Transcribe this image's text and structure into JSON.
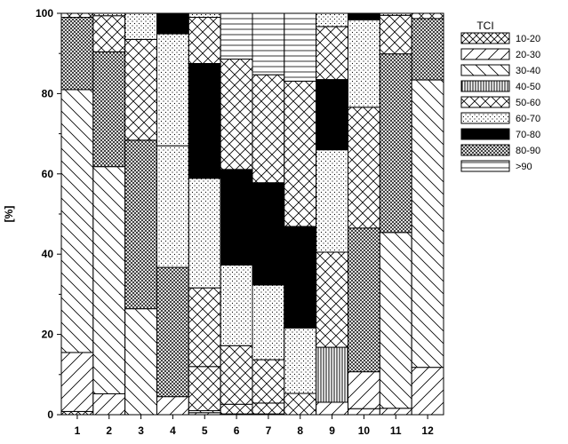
{
  "chart_data": {
    "type": "bar",
    "stacked": true,
    "categories": [
      "1",
      "2",
      "3",
      "4",
      "5",
      "6",
      "7",
      "8",
      "9",
      "10",
      "11",
      "12"
    ],
    "xlabel": "",
    "ylabel": "[%]",
    "ylim": [
      0,
      100
    ],
    "yticks": [
      0,
      20,
      40,
      60,
      80,
      100
    ],
    "grid": false,
    "legend": {
      "title": "TCI",
      "placement": "right"
    },
    "series": [
      {
        "name": "10-20",
        "pattern": "crosshatch",
        "values": [
          0.8,
          0,
          0,
          0,
          0,
          0,
          0,
          0,
          0,
          0,
          0,
          0
        ]
      },
      {
        "name": "20-30",
        "pattern": "forward-diagonal",
        "values": [
          14.7,
          5.2,
          0,
          4.5,
          0.5,
          0.2,
          0.2,
          0,
          3.1,
          10.7,
          1.6,
          11.8
        ]
      },
      {
        "name": "30-40",
        "pattern": "back-diagonal",
        "values": [
          65.5,
          56.6,
          26.4,
          0,
          0.5,
          0,
          0,
          0,
          0,
          0,
          43.8,
          71.5
        ]
      },
      {
        "name": "40-50",
        "pattern": "vertical",
        "values": [
          0,
          0,
          0,
          0,
          0,
          0,
          0,
          0,
          13.7,
          0,
          0,
          0
        ]
      },
      {
        "name": "50-60",
        "pattern": "small-crosshatch",
        "values": [
          0,
          0,
          0,
          0,
          11,
          2.4,
          2.7,
          5.3,
          0,
          0,
          0,
          0
        ]
      },
      {
        "name": "60-70",
        "pattern": "dots",
        "values": [
          0,
          0,
          0,
          0,
          0,
          0,
          0,
          0,
          0,
          0,
          0,
          0
        ]
      },
      {
        "name": "80-90",
        "pattern": "dense-crosshatch",
        "values": [
          18,
          28.6,
          42,
          32,
          0,
          0,
          0,
          0,
          0,
          35.8,
          44.5,
          15.3
        ]
      },
      {
        "name": "50-60",
        "pattern": "small-crosshatch",
        "values": [
          0,
          0,
          0,
          0,
          19.6,
          14.6,
          10.8,
          16.3,
          23.7,
          30,
          0,
          0
        ]
      },
      {
        "name": "60-70",
        "pattern": "dots",
        "values": [
          0,
          0,
          24.7,
          30.3,
          27.3,
          20.1,
          18.6,
          0,
          25.5,
          0,
          0,
          0
        ]
      },
      {
        "name": "70-80",
        "pattern": "solid",
        "values": [
          0,
          0,
          0,
          0,
          28.6,
          23.8,
          25.5,
          25.3,
          17.5,
          0,
          0,
          0
        ]
      },
      {
        "name": "50-60",
        "pattern": "small-crosshatch",
        "values": [
          0,
          0,
          0,
          0,
          0,
          27.5,
          27,
          36.4,
          0,
          0,
          0,
          0
        ]
      },
      {
        "name": "60-70",
        "pattern": "dots",
        "values": [
          0,
          0,
          0,
          0,
          0,
          0,
          0,
          0,
          0,
          21.8,
          0,
          0
        ]
      },
      {
        "name": ">90",
        "pattern": "horizontal",
        "values": [
          0,
          0,
          0,
          0,
          0,
          11.6,
          15.3,
          16.9,
          0,
          0,
          0,
          0
        ]
      }
    ],
    "stacks": [
      [
        {
          "label": "10-20",
          "pattern": "crosshatch",
          "from": 0,
          "to": 0.8
        },
        {
          "label": "20-30",
          "pattern": "forward-diagonal",
          "from": 0.8,
          "to": 15.5
        },
        {
          "label": "30-40",
          "pattern": "back-diagonal",
          "from": 15.5,
          "to": 81
        },
        {
          "label": "80-90",
          "pattern": "dense-crosshatch",
          "from": 81,
          "to": 99
        },
        {
          "label": "50-60",
          "pattern": "small-crosshatch",
          "from": 99,
          "to": 100
        }
      ],
      [
        {
          "label": "20-30",
          "pattern": "forward-diagonal",
          "from": 0,
          "to": 5.2
        },
        {
          "label": "30-40",
          "pattern": "back-diagonal",
          "from": 5.2,
          "to": 61.8
        },
        {
          "label": "80-90",
          "pattern": "dense-crosshatch",
          "from": 61.8,
          "to": 90.4
        },
        {
          "label": "50-60",
          "pattern": "small-crosshatch",
          "from": 90.4,
          "to": 99.4
        },
        {
          "label": "60-70",
          "pattern": "dots",
          "from": 99.4,
          "to": 100
        }
      ],
      [
        {
          "label": "30-40",
          "pattern": "back-diagonal",
          "from": 0,
          "to": 26.4
        },
        {
          "label": "80-90",
          "pattern": "dense-crosshatch",
          "from": 26.4,
          "to": 68.4
        },
        {
          "label": "50-60",
          "pattern": "small-crosshatch",
          "from": 68.4,
          "to": 93.5
        },
        {
          "label": "60-70",
          "pattern": "dots",
          "from": 93.5,
          "to": 100
        }
      ],
      [
        {
          "label": "20-30",
          "pattern": "forward-diagonal",
          "from": 0,
          "to": 4.5
        },
        {
          "label": "80-90",
          "pattern": "dense-crosshatch",
          "from": 4.5,
          "to": 36.7
        },
        {
          "label": "60-70",
          "pattern": "dots",
          "from": 36.7,
          "to": 67
        },
        {
          "label": "60-70",
          "pattern": "dots",
          "from": 67,
          "to": 94.9
        },
        {
          "label": "70-80",
          "pattern": "solid",
          "from": 94.9,
          "to": 100
        }
      ],
      [
        {
          "label": "20-30",
          "pattern": "forward-diagonal",
          "from": 0,
          "to": 0.5
        },
        {
          "label": "30-40",
          "pattern": "back-diagonal",
          "from": 0.5,
          "to": 1
        },
        {
          "label": "50-60",
          "pattern": "small-crosshatch",
          "from": 1,
          "to": 12
        },
        {
          "label": "50-60",
          "pattern": "small-crosshatch",
          "from": 12,
          "to": 31.6
        },
        {
          "label": "60-70",
          "pattern": "dots",
          "from": 31.6,
          "to": 58.9
        },
        {
          "label": "70-80",
          "pattern": "solid",
          "from": 58.9,
          "to": 87.5
        },
        {
          "label": "50-60",
          "pattern": "small-crosshatch",
          "from": 87.5,
          "to": 99
        },
        {
          "label": "60-70",
          "pattern": "dots",
          "from": 99,
          "to": 100
        }
      ],
      [
        {
          "label": "20-30",
          "pattern": "forward-diagonal",
          "from": 0,
          "to": 0.2
        },
        {
          "label": "50-60",
          "pattern": "small-crosshatch",
          "from": 0.2,
          "to": 2.6
        },
        {
          "label": "50-60",
          "pattern": "small-crosshatch",
          "from": 2.6,
          "to": 17.2
        },
        {
          "label": "60-70",
          "pattern": "dots",
          "from": 17.2,
          "to": 37.3
        },
        {
          "label": "70-80",
          "pattern": "solid",
          "from": 37.3,
          "to": 61.1
        },
        {
          "label": "50-60",
          "pattern": "small-crosshatch",
          "from": 61.1,
          "to": 88.6
        },
        {
          "label": ">90",
          "pattern": "horizontal",
          "from": 88.6,
          "to": 100
        }
      ],
      [
        {
          "label": "20-30",
          "pattern": "forward-diagonal",
          "from": 0,
          "to": 0.2
        },
        {
          "label": "50-60",
          "pattern": "small-crosshatch",
          "from": 0.2,
          "to": 2.9
        },
        {
          "label": "50-60",
          "pattern": "small-crosshatch",
          "from": 2.9,
          "to": 13.7
        },
        {
          "label": "60-70",
          "pattern": "dots",
          "from": 13.7,
          "to": 32.3
        },
        {
          "label": "70-80",
          "pattern": "solid",
          "from": 32.3,
          "to": 57.8
        },
        {
          "label": "50-60",
          "pattern": "small-crosshatch",
          "from": 57.8,
          "to": 84.7
        },
        {
          "label": ">90",
          "pattern": "horizontal",
          "from": 84.7,
          "to": 100
        }
      ],
      [
        {
          "label": "50-60",
          "pattern": "small-crosshatch",
          "from": 0,
          "to": 5.3
        },
        {
          "label": "60-70",
          "pattern": "dots",
          "from": 5.3,
          "to": 21.6
        },
        {
          "label": "70-80",
          "pattern": "solid",
          "from": 21.6,
          "to": 46.9
        },
        {
          "label": "50-60",
          "pattern": "small-crosshatch",
          "from": 46.9,
          "to": 83.1
        },
        {
          "label": ">90",
          "pattern": "horizontal",
          "from": 83.1,
          "to": 100
        }
      ],
      [
        {
          "label": "20-30",
          "pattern": "forward-diagonal",
          "from": 0,
          "to": 3.1
        },
        {
          "label": "40-50",
          "pattern": "vertical",
          "from": 3.1,
          "to": 16.8
        },
        {
          "label": "50-60",
          "pattern": "small-crosshatch",
          "from": 16.8,
          "to": 40.5
        },
        {
          "label": "60-70",
          "pattern": "dots",
          "from": 40.5,
          "to": 66
        },
        {
          "label": "70-80",
          "pattern": "solid",
          "from": 66,
          "to": 83.5
        },
        {
          "label": "50-60",
          "pattern": "small-crosshatch",
          "from": 83.5,
          "to": 96.7
        },
        {
          "label": "60-70",
          "pattern": "dots",
          "from": 96.7,
          "to": 100
        }
      ],
      [
        {
          "label": "20-30",
          "pattern": "forward-diagonal",
          "from": 0,
          "to": 1.5
        },
        {
          "label": "20-30",
          "pattern": "forward-diagonal",
          "from": 1.5,
          "to": 10.7
        },
        {
          "label": "80-90",
          "pattern": "dense-crosshatch",
          "from": 10.7,
          "to": 46.5
        },
        {
          "label": "50-60",
          "pattern": "small-crosshatch",
          "from": 46.5,
          "to": 76.6
        },
        {
          "label": "60-70",
          "pattern": "dots",
          "from": 76.6,
          "to": 98.4
        },
        {
          "label": "70-80",
          "pattern": "solid",
          "from": 98.4,
          "to": 100
        }
      ],
      [
        {
          "label": "20-30",
          "pattern": "forward-diagonal",
          "from": 0,
          "to": 1.6
        },
        {
          "label": "30-40",
          "pattern": "back-diagonal",
          "from": 1.6,
          "to": 45.4
        },
        {
          "label": "80-90",
          "pattern": "dense-crosshatch",
          "from": 45.4,
          "to": 89.9
        },
        {
          "label": "50-60",
          "pattern": "small-crosshatch",
          "from": 89.9,
          "to": 99.5
        },
        {
          "label": "60-70",
          "pattern": "dots",
          "from": 99.5,
          "to": 100
        }
      ],
      [
        {
          "label": "20-30",
          "pattern": "forward-diagonal",
          "from": 0,
          "to": 11.8
        },
        {
          "label": "30-40",
          "pattern": "back-diagonal",
          "from": 11.8,
          "to": 83.4
        },
        {
          "label": "80-90",
          "pattern": "dense-crosshatch",
          "from": 83.4,
          "to": 98.7
        },
        {
          "label": "50-60",
          "pattern": "small-crosshatch",
          "from": 98.7,
          "to": 100
        }
      ]
    ],
    "legend_entries": [
      {
        "label": "10-20",
        "pattern": "crosshatch"
      },
      {
        "label": "20-30",
        "pattern": "forward-diagonal"
      },
      {
        "label": "30-40",
        "pattern": "back-diagonal"
      },
      {
        "label": "40-50",
        "pattern": "vertical"
      },
      {
        "label": "50-60",
        "pattern": "small-crosshatch"
      },
      {
        "label": "60-70",
        "pattern": "dots"
      },
      {
        "label": "70-80",
        "pattern": "solid"
      },
      {
        "label": "80-90",
        "pattern": "dense-crosshatch"
      },
      {
        "label": ">90",
        "pattern": "horizontal"
      }
    ]
  }
}
